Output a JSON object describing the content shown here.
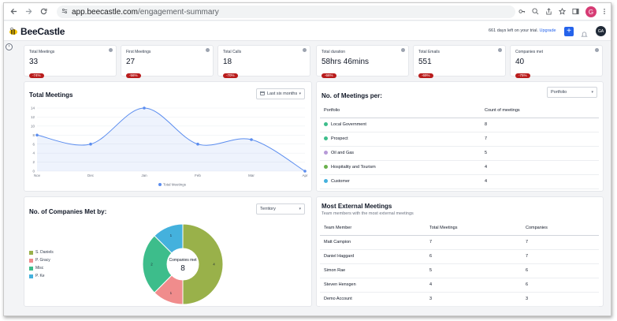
{
  "browser": {
    "url_domain": "app.beecastle.com",
    "url_path": "/engagement-summary",
    "profile_initial": "G"
  },
  "app": {
    "brand": "BeeCastle",
    "trial_text": "661 days left on your trial.",
    "upgrade_label": "Upgrade",
    "plus_label": "+",
    "avatar_initials": "GA",
    "collapse_glyph": "›"
  },
  "stats": [
    {
      "label": "Total Meetings",
      "value": "33",
      "change": "-74%"
    },
    {
      "label": "First Meetings",
      "value": "27",
      "change": "-56%"
    },
    {
      "label": "Total Calls",
      "value": "18",
      "change": "-70%"
    },
    {
      "label": "Total duration",
      "value": "58hrs 46mins",
      "change": "-66%"
    },
    {
      "label": "Total Emails",
      "value": "551",
      "change": "-69%"
    },
    {
      "label": "Companies met",
      "value": "40",
      "change": "-75%"
    }
  ],
  "meetings_panel": {
    "title": "Total Meetings",
    "dropdown": "Last six months"
  },
  "chart_data": [
    {
      "type": "line",
      "title": "Total Meetings",
      "x": [
        "Nov",
        "Dec",
        "Jan",
        "Feb",
        "Mar",
        "Apr"
      ],
      "series": [
        {
          "name": "Total Meetings",
          "values": [
            8,
            6,
            14,
            6,
            7,
            0
          ],
          "color": "#5b8def"
        }
      ],
      "yticks": [
        0,
        2,
        4,
        6,
        8,
        10,
        12,
        14
      ],
      "ylim": [
        0,
        14
      ],
      "grid": true,
      "legend": "bottom"
    },
    {
      "type": "pie",
      "title": "No. of Companies Met by:",
      "categories": [
        "S. Daniels",
        "P. Gracy",
        "Misc",
        "P. Ke"
      ],
      "values": [
        4,
        1,
        2,
        1
      ],
      "colors": [
        "#99b14a",
        "#f08c8c",
        "#3dbd8b",
        "#44b1dd"
      ],
      "center_label": "Companies met",
      "center_value": "8",
      "legend": "left"
    }
  ],
  "per_panel": {
    "title": "No. of Meetings per:",
    "dropdown": "Portfolio",
    "headers": [
      "Portfolio",
      "Count of meetings"
    ],
    "rows": [
      {
        "name": "Local Government",
        "count": "8",
        "color": "#3dbd8b"
      },
      {
        "name": "Prospect",
        "count": "7",
        "color": "#3dbd8b"
      },
      {
        "name": "Oil and Gas",
        "count": "5",
        "color": "#b79ad8"
      },
      {
        "name": "Hospitality and Tourism",
        "count": "4",
        "color": "#6ab04c"
      },
      {
        "name": "Customer",
        "count": "4",
        "color": "#44b1dd"
      }
    ]
  },
  "companies_panel": {
    "title": "No. of Companies Met by:",
    "dropdown": "Territory"
  },
  "external_panel": {
    "title": "Most External Meetings",
    "subtitle": "Team members with the most external meetings",
    "headers": [
      "Team Member",
      "Total Meetings",
      "Companies"
    ],
    "rows": [
      [
        "Matt Campion",
        "7",
        "7"
      ],
      [
        "Daniel Haggard",
        "6",
        "7"
      ],
      [
        "Simon Rae",
        "5",
        "6"
      ],
      [
        "Steven Hensgen",
        "4",
        "6"
      ],
      [
        "Demo Account",
        "3",
        "3"
      ]
    ]
  }
}
